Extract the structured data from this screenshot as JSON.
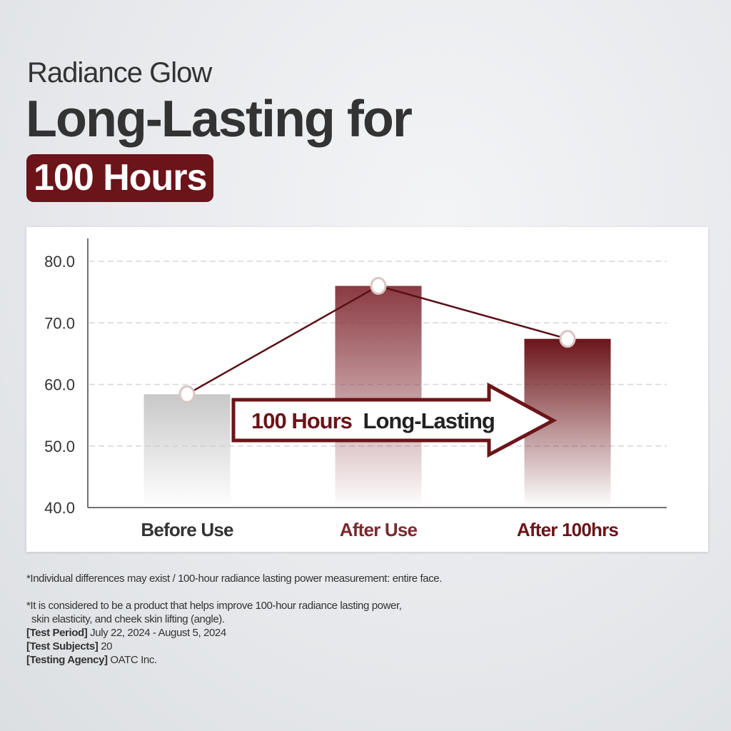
{
  "header": {
    "subtitle": "Radiance Glow",
    "title": "Long-Lasting for",
    "badge": "100 Hours"
  },
  "chart_data": {
    "type": "bar",
    "categories": [
      "Before Use",
      "After Use",
      "After 100hrs"
    ],
    "values": [
      58.4,
      76.0,
      67.4
    ],
    "line_overlay": true,
    "ylim": [
      40,
      80
    ],
    "yticks": [
      "40.0",
      "50.0",
      "60.0",
      "70.0",
      "80.0"
    ],
    "grid": true,
    "colors": {
      "before": "#c8c8c8",
      "after": "#8a3a42",
      "after100": "#6b1419",
      "line": "#5a1016"
    },
    "category_colors": [
      "#333333",
      "#7a2a30",
      "#6b1419"
    ],
    "arrow_label": {
      "highlight": "100 Hours",
      "rest": "Long-Lasting"
    }
  },
  "notes": {
    "line1": "*Individual differences may exist / 100-hour radiance lasting power measurement: entire face.",
    "line2": "*It is considered to be a product that helps improve 100-hour radiance lasting power,",
    "line3": "skin elasticity, and cheek skin lifting (angle).",
    "period_label": "[Test Period]",
    "period": "July 22, 2024 - August 5, 2024",
    "subjects_label": "[Test Subjects]",
    "subjects": "20",
    "agency_label": "[Testing Agency]",
    "agency": "OATC Inc."
  }
}
